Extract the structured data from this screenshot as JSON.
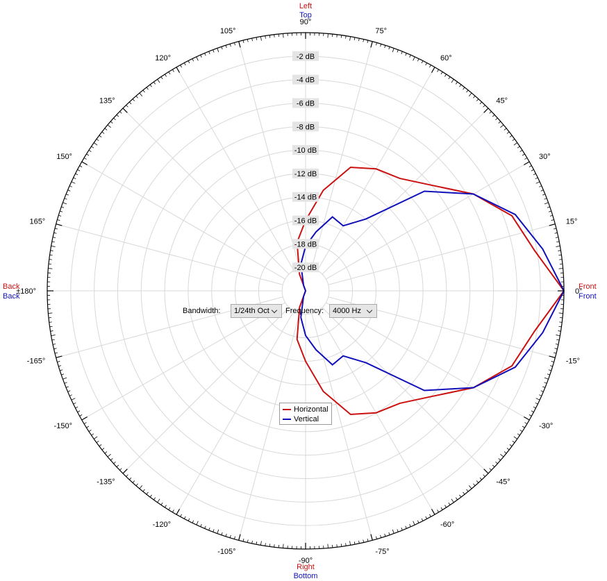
{
  "chart_data": {
    "type": "polar-line",
    "angle_unit": "degrees",
    "angle_labels": [
      "±180°",
      "-165°",
      "-150°",
      "-135°",
      "-120°",
      "-105°",
      "-90°",
      "-75°",
      "-60°",
      "-45°",
      "-30°",
      "-15°",
      "0°",
      "15°",
      "30°",
      "45°",
      "60°",
      "75°",
      "90°",
      "105°",
      "120°",
      "135°",
      "150°",
      "165°"
    ],
    "label_angles": [
      180,
      -165,
      -150,
      -135,
      -120,
      -105,
      -90,
      -75,
      -60,
      -45,
      -30,
      -15,
      0,
      15,
      30,
      45,
      60,
      75,
      90,
      105,
      120,
      135,
      150,
      165
    ],
    "radial_unit": "dB",
    "radial_range": [
      -22,
      0
    ],
    "radial_ring_values": [
      -20,
      -18,
      -16,
      -14,
      -12,
      -10,
      -8,
      -6,
      -4,
      -2
    ],
    "radial_labels": [
      "-20 dB",
      "-18 dB",
      "-16 dB",
      "-14 dB",
      "-12 dB",
      "-10 dB",
      "-8 dB",
      "-6 dB",
      "-4 dB",
      "-2 dB"
    ],
    "direction_labels": {
      "top": {
        "horizontal": "Left",
        "vertical": "Top"
      },
      "bottom": {
        "horizontal": "Right",
        "vertical": "Bottom"
      },
      "left": {
        "horizontal": "Back",
        "vertical": "Back"
      },
      "right": {
        "horizontal": "Front",
        "vertical": "Front"
      }
    },
    "series": [
      {
        "name": "Horizontal",
        "color": "#cc1111",
        "points": [
          [
            0,
            0.0
          ],
          [
            10,
            -2.2
          ],
          [
            20,
            -3.3
          ],
          [
            30,
            -5.5
          ],
          [
            40,
            -8.0
          ],
          [
            50,
            -9.5
          ],
          [
            60,
            -10.0
          ],
          [
            70,
            -10.8
          ],
          [
            80,
            -13.3
          ],
          [
            90,
            -16.0
          ],
          [
            100,
            -17.8
          ],
          [
            110,
            -20.5
          ],
          [
            120,
            -22.0
          ],
          [
            130,
            -22.0
          ],
          [
            140,
            -22.0
          ],
          [
            150,
            -22.0
          ],
          [
            160,
            -22.0
          ],
          [
            170,
            -22.0
          ],
          [
            180,
            -22.0
          ],
          [
            190,
            -22.0
          ],
          [
            200,
            -22.0
          ],
          [
            210,
            -22.0
          ],
          [
            220,
            -22.0
          ],
          [
            230,
            -22.0
          ],
          [
            240,
            -22.0
          ],
          [
            250,
            -20.5
          ],
          [
            260,
            -17.8
          ],
          [
            270,
            -16.0
          ],
          [
            280,
            -13.3
          ],
          [
            290,
            -10.8
          ],
          [
            300,
            -10.0
          ],
          [
            310,
            -9.5
          ],
          [
            320,
            -8.0
          ],
          [
            330,
            -5.5
          ],
          [
            340,
            -3.3
          ],
          [
            350,
            -2.2
          ],
          [
            360,
            0.0
          ]
        ]
      },
      {
        "name": "Vertical",
        "color": "#1111bb",
        "points": [
          [
            0,
            0.0
          ],
          [
            10,
            -1.5
          ],
          [
            20,
            -3.0
          ],
          [
            30,
            -5.5
          ],
          [
            40,
            -8.8
          ],
          [
            50,
            -14.0
          ],
          [
            60,
            -15.6
          ],
          [
            70,
            -15.3
          ],
          [
            80,
            -16.9
          ],
          [
            90,
            -18.2
          ],
          [
            100,
            -19.7
          ],
          [
            110,
            -21.5
          ],
          [
            120,
            -22.0
          ],
          [
            130,
            -22.0
          ],
          [
            140,
            -22.0
          ],
          [
            150,
            -22.0
          ],
          [
            160,
            -22.0
          ],
          [
            170,
            -22.0
          ],
          [
            180,
            -22.0
          ],
          [
            190,
            -22.0
          ],
          [
            200,
            -22.0
          ],
          [
            210,
            -22.0
          ],
          [
            220,
            -22.0
          ],
          [
            230,
            -22.0
          ],
          [
            240,
            -22.0
          ],
          [
            250,
            -21.5
          ],
          [
            260,
            -19.7
          ],
          [
            270,
            -18.2
          ],
          [
            280,
            -16.9
          ],
          [
            290,
            -15.3
          ],
          [
            300,
            -15.6
          ],
          [
            310,
            -14.0
          ],
          [
            320,
            -8.8
          ],
          [
            330,
            -5.5
          ],
          [
            340,
            -3.0
          ],
          [
            350,
            -1.5
          ],
          [
            360,
            0.0
          ]
        ]
      }
    ],
    "legend_position": "lower-center",
    "grid": true
  },
  "controls": {
    "bandwidth_label": "Bandwidth:",
    "bandwidth_value": "1/24th Oct",
    "frequency_label": "Frequency:",
    "frequency_value": "4000 Hz"
  },
  "legend": {
    "horizontal_label": "Horizontal",
    "vertical_label": "Vertical"
  },
  "colors": {
    "horizontal": "#cc1111",
    "vertical": "#1111bb",
    "grid": "#d8d8d8",
    "axis_circle": "#000000"
  }
}
